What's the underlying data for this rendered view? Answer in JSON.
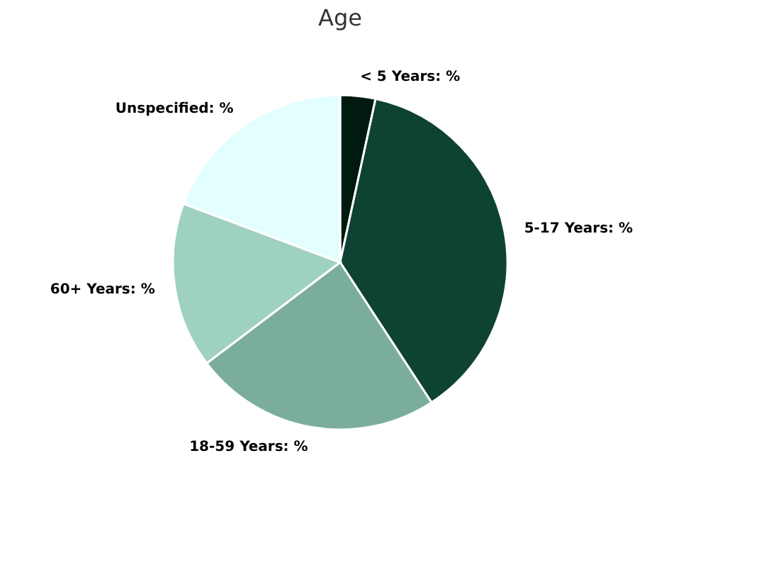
{
  "chart_data": {
    "type": "pie",
    "title": "Age",
    "categories": [
      "< 5 Years",
      "5-17 Years",
      "18-59 Years",
      "60+ Years",
      "Unspecified"
    ],
    "values": [
      3.4,
      37.4,
      23.9,
      16.0,
      19.3
    ],
    "colors": [
      "#001a0f",
      "#0e4232",
      "#7aae9b",
      "#9fd1c0",
      "#e3fefe"
    ],
    "value_labels": [
      "%",
      "%",
      "%",
      "%",
      "%"
    ],
    "legend": false
  }
}
